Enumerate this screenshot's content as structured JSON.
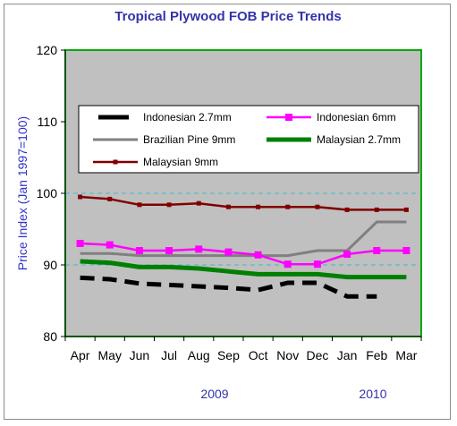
{
  "chart_data": {
    "type": "line",
    "title": "Tropical Plywood FOB Price Trends",
    "ylabel": "Price Index (Jan 1997=100)",
    "xlabel": "",
    "ylim": [
      80,
      120
    ],
    "yticks": [
      80,
      90,
      100,
      110,
      120
    ],
    "categories": [
      "Apr",
      "May",
      "Jun",
      "Jul",
      "Aug",
      "Sep",
      "Oct",
      "Nov",
      "Dec",
      "Jan",
      "Feb",
      "Mar"
    ],
    "year_labels": [
      "2009",
      "2010"
    ],
    "grid": "dashed horizontal at 90 and 100",
    "legend_position": "inside top",
    "background_color": "#c0c0c0",
    "series": [
      {
        "name": "Indonesian 2.7mm",
        "color": "#000000",
        "style": "dashed",
        "values": [
          88.2,
          88.0,
          87.4,
          87.2,
          87.0,
          86.8,
          86.5,
          87.5,
          87.5,
          85.6,
          85.6,
          null
        ]
      },
      {
        "name": "Indonesian 6mm",
        "color": "#ff00ff",
        "style": "solid-square-markers",
        "values": [
          93.0,
          92.8,
          92.0,
          92.0,
          92.2,
          91.8,
          91.4,
          90.1,
          90.1,
          91.5,
          92.0,
          92.0
        ]
      },
      {
        "name": "Brazilian Pine 9mm",
        "color": "#808080",
        "style": "solid",
        "values": [
          91.6,
          91.6,
          91.3,
          91.3,
          91.3,
          91.3,
          91.3,
          91.3,
          92.0,
          92.0,
          96.0,
          96.0
        ]
      },
      {
        "name": "Malaysian 2.7mm",
        "color": "#008000",
        "style": "solid-thick",
        "values": [
          90.5,
          90.3,
          89.7,
          89.7,
          89.5,
          89.1,
          88.7,
          88.7,
          88.7,
          88.3,
          88.3,
          88.3
        ]
      },
      {
        "name": "Malaysian 9mm",
        "color": "#800000",
        "style": "solid-small-markers",
        "values": [
          99.5,
          99.2,
          98.4,
          98.4,
          98.6,
          98.1,
          98.1,
          98.1,
          98.1,
          97.7,
          97.7,
          97.7
        ]
      }
    ]
  }
}
